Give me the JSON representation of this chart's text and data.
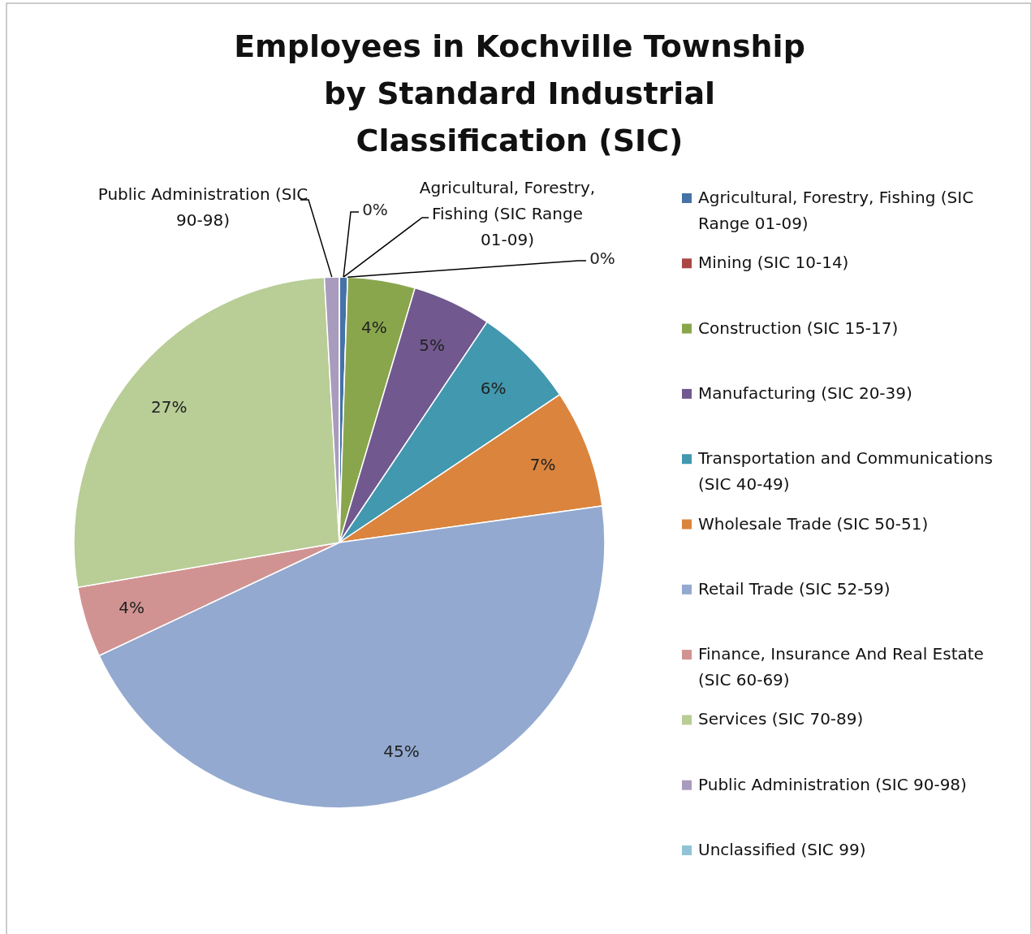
{
  "chart_data": {
    "type": "pie",
    "title": "Employees in Kochville Township by Standard Industrial Classification (SIC)",
    "categories": [
      "Agricultural, Forestry, Fishing (SIC Range 01-09)",
      "Mining (SIC 10-14)",
      "Construction (SIC 15-17)",
      "Manufacturing (SIC 20-39)",
      "Transportation and Communications (SIC 40-49)",
      "Wholesale Trade (SIC 50-51)",
      "Retail Trade (SIC 52-59)",
      "Finance, Insurance And Real Estate (SIC 60-69)",
      "Services (SIC 70-89)",
      "Public Administration (SIC 90-98)",
      "Unclassified (SIC 99)"
    ],
    "values": [
      0.5,
      0,
      4.1,
      4.8,
      6.2,
      7.2,
      45.2,
      4.3,
      26.8,
      0.9,
      0
    ],
    "colors": [
      "#4572a7",
      "#aa4643",
      "#8aa64d",
      "#71588f",
      "#4198af",
      "#db843d",
      "#93a9cf",
      "#d19392",
      "#b9cd96",
      "#a99bbd",
      "#91c3d5"
    ],
    "value_labels": [
      "0%",
      "0%",
      "4%",
      "5%",
      "6%",
      "7%",
      "45%",
      "4%",
      "27%",
      null,
      null
    ],
    "annotations": [
      "Public Administration (SIC 90-98)",
      "Agricultural, Forestry, Fishing (SIC Range 01-09)"
    ],
    "legend": "right"
  }
}
